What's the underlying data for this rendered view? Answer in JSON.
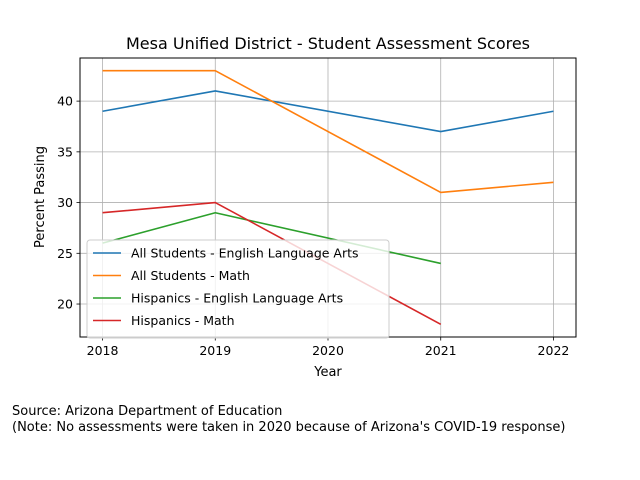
{
  "chart_data": {
    "type": "line",
    "title": "Mesa Unified District - Student Assessment Scores",
    "xlabel": "Year",
    "ylabel": "Percent Passing",
    "x": [
      2018,
      2019,
      2020,
      2021,
      2022
    ],
    "xlim": [
      2017.8,
      2022.2
    ],
    "ylim": [
      16.75,
      44.25
    ],
    "xticks": [
      2018,
      2019,
      2020,
      2021,
      2022
    ],
    "yticks": [
      20,
      25,
      30,
      35,
      40
    ],
    "grid": true,
    "legend_position": "lower left",
    "series": [
      {
        "name": "All Students - English Language Arts",
        "color": "#1f77b4",
        "points": [
          [
            2018,
            39
          ],
          [
            2019,
            41
          ],
          [
            2021,
            37
          ],
          [
            2022,
            39
          ]
        ]
      },
      {
        "name": "All Students - Math",
        "color": "#ff7f0e",
        "points": [
          [
            2018,
            43
          ],
          [
            2019,
            43
          ],
          [
            2021,
            31
          ],
          [
            2022,
            32
          ]
        ]
      },
      {
        "name": "Hispanics - English Language Arts",
        "color": "#2ca02c",
        "points": [
          [
            2018,
            26
          ],
          [
            2019,
            29
          ],
          [
            2021,
            24
          ]
        ]
      },
      {
        "name": "Hispanics - Math",
        "color": "#d62728",
        "points": [
          [
            2018,
            29
          ],
          [
            2019,
            30
          ],
          [
            2021,
            18
          ]
        ]
      }
    ]
  },
  "footnote": {
    "source": "Source: Arizona Department of Education",
    "note": "(Note: No assessments were taken in 2020 because of Arizona's COVID-19 response)"
  }
}
